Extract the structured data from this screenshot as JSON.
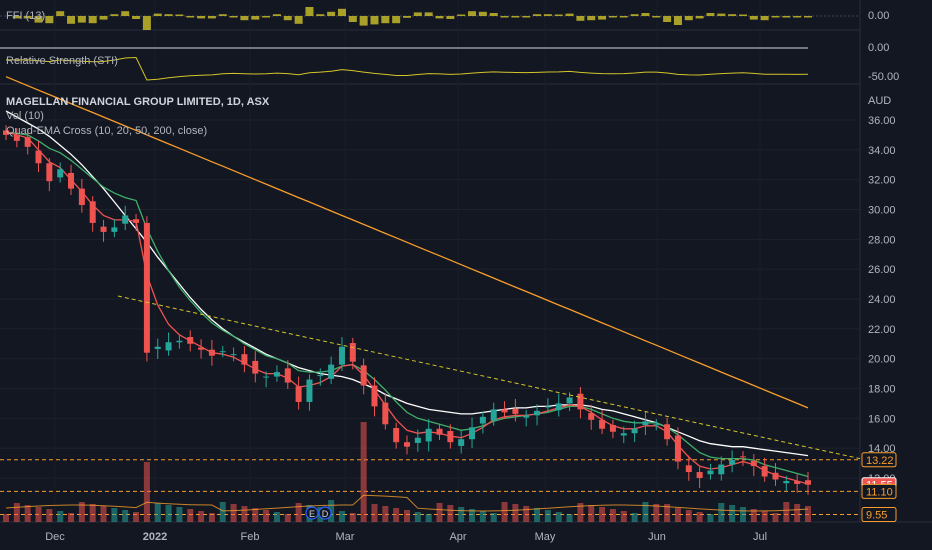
{
  "chart_data": {
    "type": "candlestick",
    "title": "MAGELLAN FINANCIAL GROUP LIMITED, 1D, ASX",
    "currency": "AUD",
    "indicators": [
      "Vol (10)",
      "Quad-EMA Cross (10, 20, 50, 200, close)"
    ],
    "panes": [
      {
        "name": "FFI (13)",
        "ticks": [
          "0.00"
        ]
      },
      {
        "name": "Relative Strength (STI)",
        "ticks": [
          "0.00",
          "-50.00"
        ]
      }
    ],
    "y_ticks": [
      "36.00",
      "34.00",
      "32.00",
      "30.00",
      "28.00",
      "26.00",
      "24.00",
      "22.00",
      "20.00",
      "18.00",
      "16.00",
      "14.00",
      "12.00"
    ],
    "ylim": [
      10.8,
      37.2
    ],
    "x_ticks": [
      "Dec",
      "2022",
      "Feb",
      "Mar",
      "Apr",
      "May",
      "Jun",
      "Jul"
    ],
    "price_tags": [
      {
        "label": "13.22",
        "value": 13.22,
        "color": "#f89d2b",
        "bg": "#131722"
      },
      {
        "label": "11.55",
        "value": 11.55,
        "color": "#ffffff",
        "bg": "#ef5350"
      },
      {
        "label": "11.10",
        "value": 11.1,
        "color": "#f89d2b",
        "bg": "#131722"
      },
      {
        "label": "9.55",
        "value": 9.55,
        "color": "#f89d2b",
        "bg": "#131722"
      }
    ],
    "trendline": {
      "from_value": 24.2,
      "to_value": 13.3
    },
    "close_path": [
      35.0,
      34.6,
      34.2,
      33.1,
      31.9,
      32.7,
      31.4,
      30.3,
      29.1,
      28.5,
      28.8,
      29.6,
      29.1,
      20.4,
      20.8,
      21.1,
      21.2,
      21.0,
      20.6,
      20.2,
      20.5,
      20.3,
      19.6,
      19.0,
      18.8,
      19.1,
      18.4,
      17.1,
      18.6,
      18.9,
      19.6,
      20.8,
      19.8,
      18.2,
      16.8,
      15.6,
      14.4,
      14.1,
      14.7,
      15.3,
      14.9,
      14.4,
      14.6,
      15.4,
      16.1,
      16.6,
      16.4,
      16.3,
      16.2,
      16.5,
      16.8,
      17.0,
      17.4,
      16.6,
      15.9,
      15.3,
      15.1,
      15.0,
      15.3,
      15.8,
      15.6,
      14.6,
      13.1,
      12.4,
      12.0,
      12.5,
      12.9,
      13.2,
      13.4,
      12.8,
      12.1,
      11.9,
      11.8,
      11.6,
      11.55
    ],
    "ema_short": [
      35.2,
      35.0,
      34.8,
      34.0,
      33.2,
      32.8,
      32.0,
      31.2,
      30.3,
      29.6,
      29.3,
      29.3,
      29.2,
      25.6,
      23.6,
      22.3,
      21.6,
      21.2,
      20.8,
      20.4,
      20.3,
      20.1,
      19.7,
      19.3,
      19.0,
      19.0,
      18.7,
      18.1,
      18.2,
      18.4,
      18.8,
      19.5,
      19.6,
      18.9,
      17.9,
      16.9,
      15.9,
      15.2,
      15.0,
      15.1,
      15.0,
      14.8,
      14.7,
      15.0,
      15.4,
      15.9,
      16.1,
      16.2,
      16.2,
      16.3,
      16.5,
      16.7,
      16.9,
      16.8,
      16.4,
      15.9,
      15.5,
      15.3,
      15.3,
      15.5,
      15.5,
      15.1,
      14.2,
      13.4,
      12.8,
      12.6,
      12.7,
      12.9,
      13.1,
      12.9,
      12.5,
      12.2,
      12.0,
      11.8,
      11.6
    ],
    "ema_mid": [
      35.2,
      35.1,
      35.0,
      34.6,
      34.1,
      33.8,
      33.3,
      32.7,
      32.1,
      31.5,
      31.1,
      30.8,
      30.6,
      28.7,
      27.2,
      25.9,
      24.8,
      23.9,
      23.1,
      22.4,
      21.9,
      21.5,
      21.0,
      20.6,
      20.2,
      20.0,
      19.7,
      19.2,
      19.1,
      19.1,
      19.2,
      19.5,
      19.6,
      19.2,
      18.6,
      17.9,
      17.1,
      16.4,
      16.0,
      15.8,
      15.6,
      15.4,
      15.2,
      15.3,
      15.5,
      15.8,
      16.0,
      16.1,
      16.2,
      16.3,
      16.4,
      16.6,
      16.8,
      16.8,
      16.6,
      16.3,
      16.0,
      15.8,
      15.7,
      15.7,
      15.7,
      15.4,
      14.9,
      14.3,
      13.7,
      13.4,
      13.3,
      13.3,
      13.3,
      13.2,
      12.9,
      12.7,
      12.5,
      12.3,
      12.1
    ],
    "ema_long": [
      36.6,
      36.2,
      35.8,
      35.4,
      34.9,
      34.3,
      33.7,
      33.0,
      32.2,
      31.4,
      30.5,
      29.6,
      28.7,
      27.8,
      26.8,
      25.9,
      25.0,
      24.1,
      23.3,
      22.6,
      22.0,
      21.5,
      21.1,
      20.7,
      20.3,
      20.0,
      19.7,
      19.4,
      19.2,
      19.0,
      18.9,
      18.8,
      18.6,
      18.3,
      18.0,
      17.6,
      17.3,
      17.0,
      16.8,
      16.6,
      16.5,
      16.4,
      16.3,
      16.3,
      16.4,
      16.5,
      16.6,
      16.7,
      16.7,
      16.8,
      16.8,
      16.9,
      16.9,
      16.9,
      16.8,
      16.6,
      16.5,
      16.3,
      16.1,
      15.9,
      15.7,
      15.4,
      15.1,
      14.8,
      14.5,
      14.3,
      14.2,
      14.1,
      14.1,
      14.0,
      13.9,
      13.8,
      13.7,
      13.6,
      13.5
    ],
    "ema_200": [
      38.9,
      38.6,
      38.3,
      38.0,
      37.7,
      37.4,
      37.1,
      36.8,
      36.5,
      36.2,
      35.9,
      35.6,
      35.3,
      35.0,
      34.7,
      34.4,
      34.1,
      33.8,
      33.5,
      33.2,
      32.9,
      32.6,
      32.3,
      32.0,
      31.7,
      31.4,
      31.1,
      30.8,
      30.5,
      30.2,
      29.9,
      29.6,
      29.3,
      29.0,
      28.7,
      28.4,
      28.1,
      27.8,
      27.5,
      27.2,
      26.9,
      26.6,
      26.3,
      26.0,
      25.7,
      25.4,
      25.1,
      24.8,
      24.5,
      24.2,
      23.9,
      23.6,
      23.3,
      23.0,
      22.7,
      22.4,
      22.1,
      21.8,
      21.5,
      21.2,
      20.9,
      20.6,
      20.3,
      20.0,
      19.7,
      19.4,
      19.1,
      18.8,
      18.5,
      18.2,
      17.9,
      17.6,
      17.3,
      17.0,
      16.7
    ]
  }
}
